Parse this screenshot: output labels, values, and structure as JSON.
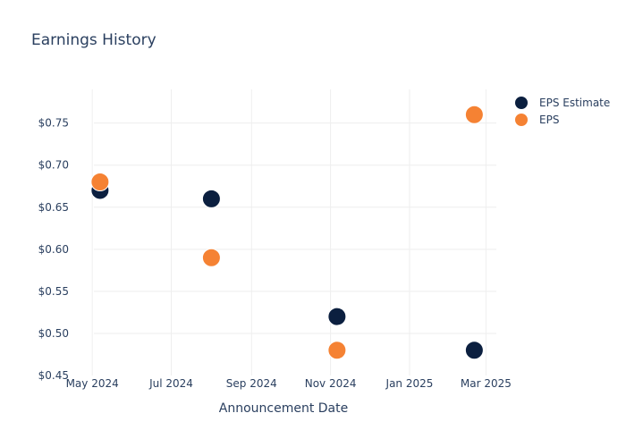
{
  "chart_data": {
    "type": "scatter",
    "title": "Earnings History",
    "xlabel": "Announcement Date",
    "ylabel": "",
    "x_ticks": [
      {
        "date": "2024-05-01",
        "label": "May 2024"
      },
      {
        "date": "2024-07-01",
        "label": "Jul 2024"
      },
      {
        "date": "2024-09-01",
        "label": "Sep 2024"
      },
      {
        "date": "2024-11-01",
        "label": "Nov 2024"
      },
      {
        "date": "2025-01-01",
        "label": "Jan 2025"
      },
      {
        "date": "2025-03-01",
        "label": "Mar 2025"
      }
    ],
    "y_ticks": [
      {
        "value": 0.45,
        "label": "$0.45"
      },
      {
        "value": 0.5,
        "label": "$0.50"
      },
      {
        "value": 0.55,
        "label": "$0.55"
      },
      {
        "value": 0.6,
        "label": "$0.60"
      },
      {
        "value": 0.65,
        "label": "$0.65"
      },
      {
        "value": 0.7,
        "label": "$0.70"
      },
      {
        "value": 0.75,
        "label": "$0.75"
      }
    ],
    "xlim": [
      "2024-04-15",
      "2025-03-09"
    ],
    "ylim": [
      0.45,
      0.79
    ],
    "grid": true,
    "legend_position": "top-right",
    "series": [
      {
        "name": "EPS Estimate",
        "color": "#0b1f3f",
        "points": [
          {
            "x": "2024-05-07",
            "y": 0.67
          },
          {
            "x": "2024-08-01",
            "y": 0.66
          },
          {
            "x": "2024-11-06",
            "y": 0.52
          },
          {
            "x": "2025-02-20",
            "y": 0.48
          }
        ]
      },
      {
        "name": "EPS",
        "color": "#f58233",
        "points": [
          {
            "x": "2024-05-07",
            "y": 0.68
          },
          {
            "x": "2024-08-01",
            "y": 0.59
          },
          {
            "x": "2024-11-06",
            "y": 0.48
          },
          {
            "x": "2025-02-20",
            "y": 0.76
          }
        ]
      }
    ]
  }
}
